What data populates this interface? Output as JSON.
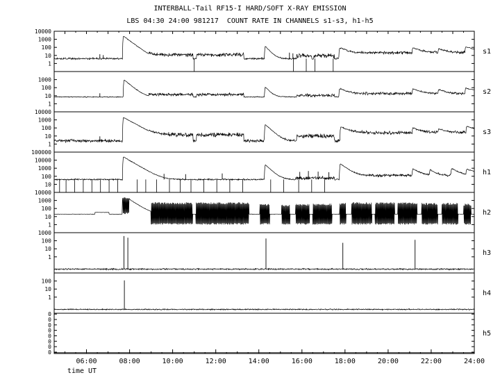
{
  "chart_data": {
    "type": "line",
    "title": "INTERBALL-Tail RF15-I HARD/SOFT X-RAY EMISSION",
    "subtitle": "LBS 04:30 24:00 981217  COUNT RATE IN CHANNELS s1-s3, h1-h5",
    "xlabel": "time UT",
    "x_range": [
      4.5,
      24
    ],
    "x_major_ticks": [
      {
        "hour": 6,
        "label": "06:00"
      },
      {
        "hour": 8,
        "label": "08:00"
      },
      {
        "hour": 10,
        "label": "10:00"
      },
      {
        "hour": 12,
        "label": "12:00"
      },
      {
        "hour": 14,
        "label": "14:00"
      },
      {
        "hour": 16,
        "label": "16:00"
      },
      {
        "hour": 18,
        "label": "18:00"
      },
      {
        "hour": 20,
        "label": "20:00"
      },
      {
        "hour": 22,
        "label": "22:00"
      },
      {
        "hour": 24,
        "label": "24:00"
      }
    ],
    "grid": false,
    "line_color": "#000000",
    "background": "#ffffff",
    "panels": [
      {
        "name": "s1",
        "exp_range": [
          -1,
          4
        ],
        "ticks": [
          [
            "10000",
            0
          ],
          [
            "1000",
            0.2
          ],
          [
            "100",
            0.4
          ],
          [
            "10",
            0.6
          ],
          [
            "1",
            0.8
          ]
        ],
        "baseline": 4,
        "noise": 0.13,
        "segments": [
          [
            8.9,
            10.95,
            12,
            0.28
          ],
          [
            11.1,
            13.3,
            12,
            0.28
          ],
          [
            15.75,
            16.45,
            9,
            0.3
          ],
          [
            16.55,
            17.5,
            9,
            0.3
          ],
          [
            17.8,
            24,
            22,
            0.22
          ]
        ],
        "bursts": [
          [
            7.72,
            2500,
            0.22
          ],
          [
            14.3,
            130,
            0.15
          ],
          [
            17.75,
            80,
            0.25
          ],
          [
            21.15,
            70,
            0.3
          ],
          [
            22.35,
            45,
            0.3
          ],
          [
            23.6,
            90,
            0.5
          ]
        ],
        "spikes": [
          [
            6.62,
            14
          ],
          [
            6.78,
            11
          ],
          [
            15.42,
            22
          ],
          [
            15.58,
            18
          ]
        ],
        "dropouts": [
          11.0,
          15.6,
          16.2,
          16.6,
          17.45
        ]
      },
      {
        "name": "s2",
        "exp_range": [
          -1,
          4
        ],
        "ticks": [
          [
            "1000",
            0.2
          ],
          [
            "100",
            0.4
          ],
          [
            "10",
            0.6
          ],
          [
            "1",
            0.8
          ]
        ],
        "baseline": 7,
        "noise": 0.07,
        "segments": [
          [
            8.9,
            10.95,
            14,
            0.22
          ],
          [
            11.1,
            13.3,
            14,
            0.22
          ],
          [
            15.75,
            17.5,
            11,
            0.22
          ],
          [
            17.8,
            24,
            18,
            0.2
          ]
        ],
        "bursts": [
          [
            7.75,
            900,
            0.2
          ],
          [
            14.3,
            110,
            0.15
          ],
          [
            17.75,
            70,
            0.25
          ],
          [
            21.15,
            55,
            0.3
          ],
          [
            22.35,
            40,
            0.3
          ],
          [
            23.6,
            70,
            0.5
          ]
        ],
        "spikes": [
          [
            6.62,
            20
          ]
        ]
      },
      {
        "name": "s3",
        "exp_range": [
          -1,
          4
        ],
        "ticks": [
          [
            "10000",
            0
          ],
          [
            "1000",
            0.2
          ],
          [
            "100",
            0.4
          ],
          [
            "10",
            0.6
          ],
          [
            "1",
            0.8
          ]
        ],
        "baseline": 2.5,
        "noise": 0.22,
        "segments": [
          [
            8.9,
            10.95,
            14,
            0.3
          ],
          [
            11.1,
            13.3,
            14,
            0.3
          ],
          [
            15.75,
            17.5,
            10,
            0.3
          ],
          [
            17.8,
            24,
            25,
            0.25
          ]
        ],
        "bursts": [
          [
            7.72,
            2000,
            0.3
          ],
          [
            14.3,
            260,
            0.18
          ],
          [
            17.8,
            110,
            0.3
          ],
          [
            21.15,
            80,
            0.3
          ],
          [
            22.35,
            55,
            0.3
          ],
          [
            23.65,
            140,
            0.4
          ]
        ],
        "spikes": [
          [
            6.62,
            9
          ]
        ]
      },
      {
        "name": "h1",
        "exp_range": [
          0,
          5
        ],
        "ticks": [
          [
            "100000",
            0
          ],
          [
            "10000",
            0.2
          ],
          [
            "1000",
            0.4
          ],
          [
            "100",
            0.6
          ],
          [
            "10",
            0.8
          ]
        ],
        "baseline": 40,
        "noise": 0.1,
        "segments": [
          [
            15.7,
            17.5,
            60,
            0.25
          ],
          [
            17.85,
            24,
            130,
            0.2
          ]
        ],
        "bursts": [
          [
            7.72,
            25000,
            0.28
          ],
          [
            14.3,
            2600,
            0.18
          ],
          [
            17.78,
            3500,
            0.22
          ],
          [
            21.15,
            700,
            0.25
          ],
          [
            21.95,
            500,
            0.2
          ],
          [
            22.95,
            800,
            0.25
          ],
          [
            23.65,
            600,
            0.4
          ]
        ],
        "spikes": [
          [
            9.6,
            200
          ],
          [
            10.6,
            180
          ],
          [
            12.3,
            220
          ],
          [
            15.9,
            350
          ],
          [
            16.3,
            450
          ],
          [
            16.75,
            380
          ],
          [
            17.25,
            320
          ]
        ],
        "dropouts": [
          4.75,
          5.05,
          5.45,
          5.85,
          6.25,
          6.65,
          7.05,
          7.45,
          8.35,
          8.75,
          9.25,
          9.85,
          10.35,
          10.85,
          11.45,
          12.05,
          12.65,
          13.25,
          14.55,
          15.15,
          15.85,
          16.45,
          17.05
        ]
      },
      {
        "name": "h2",
        "exp_range": [
          -1,
          4
        ],
        "ticks": [
          [
            "10000",
            0
          ],
          [
            "1000",
            0.2
          ],
          [
            "100",
            0.4
          ],
          [
            "10",
            0.6
          ],
          [
            "1",
            0.8
          ]
        ],
        "baseline": 20,
        "noise": 0.02,
        "segments": [
          [
            6.4,
            7.05,
            33,
            0.02
          ]
        ],
        "bursts": [
          [
            7.7,
            4500,
            0.25
          ]
        ],
        "blocks": [
          [
            7.68,
            7.98,
            20,
            3000
          ],
          [
            9.0,
            10.93,
            1,
            600
          ],
          [
            11.08,
            13.55,
            1,
            600
          ],
          [
            14.05,
            14.5,
            1,
            400
          ],
          [
            15.05,
            15.45,
            1,
            300
          ],
          [
            15.7,
            16.35,
            1,
            400
          ],
          [
            16.5,
            17.4,
            1,
            400
          ],
          [
            17.75,
            18.05,
            1,
            500
          ],
          [
            18.3,
            19.25,
            1,
            600
          ],
          [
            19.4,
            20.3,
            1,
            600
          ],
          [
            20.45,
            21.35,
            1,
            600
          ],
          [
            21.55,
            22.3,
            1,
            500
          ],
          [
            22.5,
            23.25,
            1,
            500
          ],
          [
            23.5,
            23.85,
            1,
            400
          ]
        ]
      },
      {
        "name": "h3",
        "exp_range": [
          -2,
          3
        ],
        "ticks": [
          [
            "1000",
            0
          ],
          [
            "100",
            0.2
          ],
          [
            "10",
            0.4
          ],
          [
            "1",
            0.6
          ]
        ],
        "baseline": 0.03,
        "noise": 0.1,
        "spikes": [
          [
            7.74,
            380
          ],
          [
            7.92,
            240
          ],
          [
            14.33,
            190
          ],
          [
            17.9,
            55
          ],
          [
            21.25,
            130
          ]
        ]
      },
      {
        "name": "h4",
        "exp_range": [
          -2,
          3
        ],
        "ticks": [
          [
            "100",
            0.2
          ],
          [
            "10",
            0.4
          ],
          [
            "1",
            0.6
          ]
        ],
        "baseline": 0.03,
        "noise": 0.08,
        "spikes": [
          [
            7.76,
            120
          ]
        ]
      },
      {
        "name": "h5",
        "exp_range": [
          0,
          5
        ],
        "flat": true,
        "ticks": [
          [
            "0",
            0.02
          ],
          [
            "0",
            0.155
          ],
          [
            "0",
            0.29
          ],
          [
            "0",
            0.425
          ],
          [
            "0",
            0.56
          ],
          [
            "0",
            0.695
          ],
          [
            "0",
            0.83
          ],
          [
            "0",
            0.965
          ]
        ]
      }
    ]
  }
}
